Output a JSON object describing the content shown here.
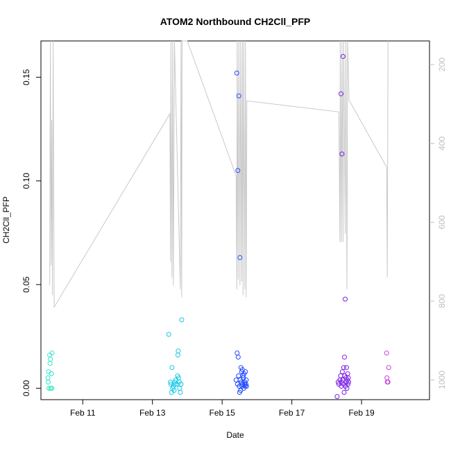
{
  "chart_data": {
    "type": "scatter",
    "title": "ATOM2 Northbound CH2Cll_PFP",
    "xlabel": "Date",
    "ylabel": "CH2Cll_PFP",
    "x_unit": "day of February",
    "xlim": [
      9.8,
      20.95
    ],
    "ylim": [
      -0.0055,
      0.1675
    ],
    "x_ticks": [
      {
        "value": 11,
        "label": "Feb 11"
      },
      {
        "value": 13,
        "label": "Feb 13"
      },
      {
        "value": 15,
        "label": "Feb 15"
      },
      {
        "value": 17,
        "label": "Feb 17"
      },
      {
        "value": 19,
        "label": "Feb 19"
      }
    ],
    "y_ticks": [
      {
        "value": 0.0,
        "label": "0.00"
      },
      {
        "value": 0.05,
        "label": "0.05"
      },
      {
        "value": 0.1,
        "label": "0.10"
      },
      {
        "value": 0.15,
        "label": "0.15"
      }
    ],
    "right_axis": {
      "note": "secondary axis drawn in light gray, inverted (increasing downward)",
      "range": [
        1050,
        140
      ],
      "ticks": [
        {
          "value": 200,
          "label": "200"
        },
        {
          "value": 400,
          "label": "400"
        },
        {
          "value": 600,
          "label": "600"
        },
        {
          "value": 800,
          "label": "800"
        },
        {
          "value": 1000,
          "label": "1000"
        }
      ],
      "line_color": "#c8c8c8",
      "line": [
        [
          10.05,
          760
        ],
        [
          10.07,
          140
        ],
        [
          10.09,
          710
        ],
        [
          10.11,
          340
        ],
        [
          10.13,
          785
        ],
        [
          10.15,
          140
        ],
        [
          10.18,
          815
        ],
        [
          13.5,
          325
        ],
        [
          13.52,
          700
        ],
        [
          13.53,
          140
        ],
        [
          13.56,
          740
        ],
        [
          13.58,
          140
        ],
        [
          13.6,
          760
        ],
        [
          13.63,
          140
        ],
        [
          13.8,
          770
        ],
        [
          13.82,
          140
        ],
        [
          13.84,
          790
        ],
        [
          13.85,
          140
        ],
        [
          14.0,
          140
        ],
        [
          15.4,
          482
        ],
        [
          15.42,
          770
        ],
        [
          15.43,
          140
        ],
        [
          15.46,
          745
        ],
        [
          15.48,
          140
        ],
        [
          15.51,
          760
        ],
        [
          15.53,
          140
        ],
        [
          15.56,
          750
        ],
        [
          15.58,
          140
        ],
        [
          15.6,
          785
        ],
        [
          15.62,
          140
        ],
        [
          15.65,
          770
        ],
        [
          15.67,
          140
        ],
        [
          15.69,
          790
        ],
        [
          15.71,
          292
        ],
        [
          18.35,
          320
        ],
        [
          18.38,
          650
        ],
        [
          18.39,
          140
        ],
        [
          18.42,
          650
        ],
        [
          18.44,
          140
        ],
        [
          18.47,
          650
        ],
        [
          18.49,
          140
        ],
        [
          18.53,
          630
        ],
        [
          18.55,
          140
        ],
        [
          18.58,
          770
        ],
        [
          18.6,
          140
        ],
        [
          18.64,
          290
        ],
        [
          19.72,
          460
        ],
        [
          19.74,
          740
        ],
        [
          19.76,
          140
        ]
      ]
    },
    "series": [
      {
        "color": "#2ee6c8",
        "points": [
          [
            10.0,
            0.005
          ],
          [
            10.01,
            0.003
          ],
          [
            10.02,
            0.008
          ],
          [
            10.03,
            0.0
          ],
          [
            10.05,
            0.016
          ],
          [
            10.06,
            0.012
          ],
          [
            10.07,
            0.014
          ],
          [
            10.08,
            0.0
          ],
          [
            10.1,
            0.007
          ],
          [
            10.11,
            0.0
          ],
          [
            10.12,
            0.017
          ]
        ]
      },
      {
        "color": "#14c8e6",
        "points": [
          [
            13.47,
            0.026
          ],
          [
            13.52,
            0.003
          ],
          [
            13.53,
            0.002
          ],
          [
            13.55,
            -0.002
          ],
          [
            13.56,
            0.01
          ],
          [
            13.58,
            0.0
          ],
          [
            13.6,
            0.001
          ],
          [
            13.62,
            -0.001
          ],
          [
            13.64,
            0.003
          ],
          [
            13.65,
            0.002
          ],
          [
            13.67,
            0.004
          ],
          [
            13.7,
            0.002
          ],
          [
            13.72,
            0.006
          ],
          [
            13.73,
            0.016
          ],
          [
            13.74,
            0.018
          ],
          [
            13.75,
            0.005
          ],
          [
            13.77,
            0.003
          ],
          [
            13.78,
            0.0
          ],
          [
            13.8,
            -0.002
          ],
          [
            13.82,
            0.002
          ],
          [
            13.84,
            0.033
          ]
        ]
      },
      {
        "color": "#1e46ff",
        "points": [
          [
            15.4,
            0.004
          ],
          [
            15.42,
            0.152
          ],
          [
            15.43,
            0.017
          ],
          [
            15.44,
            0.002
          ],
          [
            15.45,
            0.105
          ],
          [
            15.46,
            0.015
          ],
          [
            15.47,
            0.006
          ],
          [
            15.48,
            0.141
          ],
          [
            15.49,
            0.001
          ],
          [
            15.5,
            -0.002
          ],
          [
            15.51,
            0.063
          ],
          [
            15.52,
            0.004
          ],
          [
            15.53,
            -0.001
          ],
          [
            15.54,
            0.01
          ],
          [
            15.55,
            0.003
          ],
          [
            15.56,
            0.008
          ],
          [
            15.57,
            0.001
          ],
          [
            15.58,
            0.009
          ],
          [
            15.59,
            0.002
          ],
          [
            15.6,
            0.006
          ],
          [
            15.61,
            0.005
          ],
          [
            15.62,
            0.0
          ],
          [
            15.63,
            0.007
          ],
          [
            15.64,
            0.002
          ],
          [
            15.65,
            0.003
          ],
          [
            15.66,
            0.001
          ],
          [
            15.67,
            0.008
          ],
          [
            15.68,
            0.002
          ],
          [
            15.69,
            0.004
          ],
          [
            15.7,
            0.001
          ]
        ]
      },
      {
        "color": "#7a1ee6",
        "points": [
          [
            18.3,
            -0.004
          ],
          [
            18.33,
            0.003
          ],
          [
            18.35,
            0.002
          ],
          [
            18.38,
            0.004
          ],
          [
            18.4,
            0.006
          ],
          [
            18.41,
            0.142
          ],
          [
            18.42,
            0.001
          ],
          [
            18.43,
            0.003
          ],
          [
            18.44,
            0.113
          ],
          [
            18.45,
            0.008
          ],
          [
            18.46,
            0.004
          ],
          [
            18.47,
            0.16
          ],
          [
            18.48,
            0.002
          ],
          [
            18.49,
            0.01
          ],
          [
            18.5,
            -0.002
          ],
          [
            18.51,
            0.015
          ],
          [
            18.52,
            0.006
          ],
          [
            18.53,
            0.043
          ],
          [
            18.54,
            0.001
          ],
          [
            18.55,
            0.005
          ],
          [
            18.56,
            0.003
          ],
          [
            18.57,
            0.01
          ],
          [
            18.58,
            0.0
          ],
          [
            18.59,
            0.004
          ],
          [
            18.6,
            0.007
          ],
          [
            18.61,
            0.002
          ],
          [
            18.62,
            0.005
          ],
          [
            18.63,
            0.003
          ]
        ]
      },
      {
        "color": "#c83cdc",
        "points": [
          [
            19.72,
            0.017
          ],
          [
            19.73,
            0.005
          ],
          [
            19.74,
            0.003
          ],
          [
            19.76,
            0.003
          ],
          [
            19.78,
            0.01
          ]
        ]
      }
    ]
  }
}
